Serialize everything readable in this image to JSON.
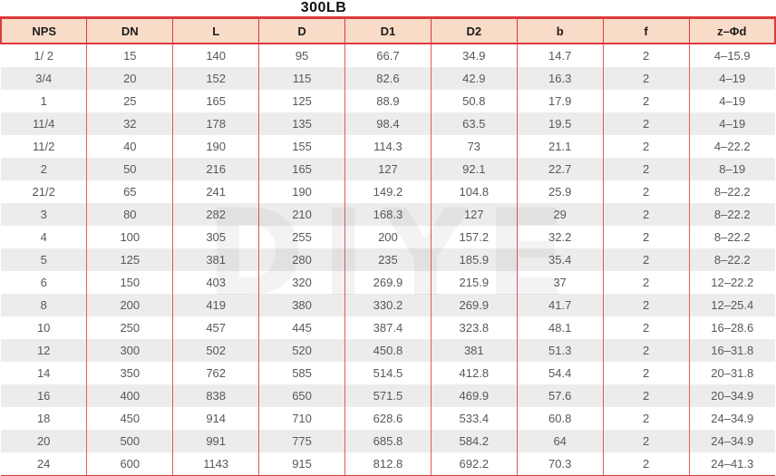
{
  "title": "300LB",
  "watermark": "DIYE",
  "colors": {
    "header_bg": "#f9dcc8",
    "border_red": "#dd3a3c",
    "line_red": "#e4595c",
    "stripe": "#ececec"
  },
  "table": {
    "columns": [
      "NPS",
      "DN",
      "L",
      "D",
      "D1",
      "D2",
      "b",
      "f",
      "z–Φd"
    ],
    "rows": [
      [
        "1/ 2",
        "15",
        "140",
        "95",
        "66.7",
        "34.9",
        "14.7",
        "2",
        "4–15.9"
      ],
      [
        "3/4",
        "20",
        "152",
        "115",
        "82.6",
        "42.9",
        "16.3",
        "2",
        "4–19"
      ],
      [
        "1",
        "25",
        "165",
        "125",
        "88.9",
        "50.8",
        "17.9",
        "2",
        "4–19"
      ],
      [
        "11/4",
        "32",
        "178",
        "135",
        "98.4",
        "63.5",
        "19.5",
        "2",
        "4–19"
      ],
      [
        "11/2",
        "40",
        "190",
        "155",
        "114.3",
        "73",
        "21.1",
        "2",
        "4–22.2"
      ],
      [
        "2",
        "50",
        "216",
        "165",
        "127",
        "92.1",
        "22.7",
        "2",
        "8–19"
      ],
      [
        "21/2",
        "65",
        "241",
        "190",
        "149.2",
        "104.8",
        "25.9",
        "2",
        "8–22.2"
      ],
      [
        "3",
        "80",
        "282",
        "210",
        "168.3",
        "127",
        "29",
        "2",
        "8–22.2"
      ],
      [
        "4",
        "100",
        "305",
        "255",
        "200",
        "157.2",
        "32.2",
        "2",
        "8–22.2"
      ],
      [
        "5",
        "125",
        "381",
        "280",
        "235",
        "185.9",
        "35.4",
        "2",
        "8–22.2"
      ],
      [
        "6",
        "150",
        "403",
        "320",
        "269.9",
        "215.9",
        "37",
        "2",
        "12–22.2"
      ],
      [
        "8",
        "200",
        "419",
        "380",
        "330.2",
        "269.9",
        "41.7",
        "2",
        "12–25.4"
      ],
      [
        "10",
        "250",
        "457",
        "445",
        "387.4",
        "323.8",
        "48.1",
        "2",
        "16–28.6"
      ],
      [
        "12",
        "300",
        "502",
        "520",
        "450.8",
        "381",
        "51.3",
        "2",
        "16–31.8"
      ],
      [
        "14",
        "350",
        "762",
        "585",
        "514.5",
        "412.8",
        "54.4",
        "2",
        "20–31.8"
      ],
      [
        "16",
        "400",
        "838",
        "650",
        "571.5",
        "469.9",
        "57.6",
        "2",
        "20–34.9"
      ],
      [
        "18",
        "450",
        "914",
        "710",
        "628.6",
        "533.4",
        "60.8",
        "2",
        "24–34.9"
      ],
      [
        "20",
        "500",
        "991",
        "775",
        "685.8",
        "584.2",
        "64",
        "2",
        "24–34.9"
      ],
      [
        "24",
        "600",
        "1143",
        "915",
        "812.8",
        "692.2",
        "70.3",
        "2",
        "24–41.3"
      ]
    ]
  }
}
